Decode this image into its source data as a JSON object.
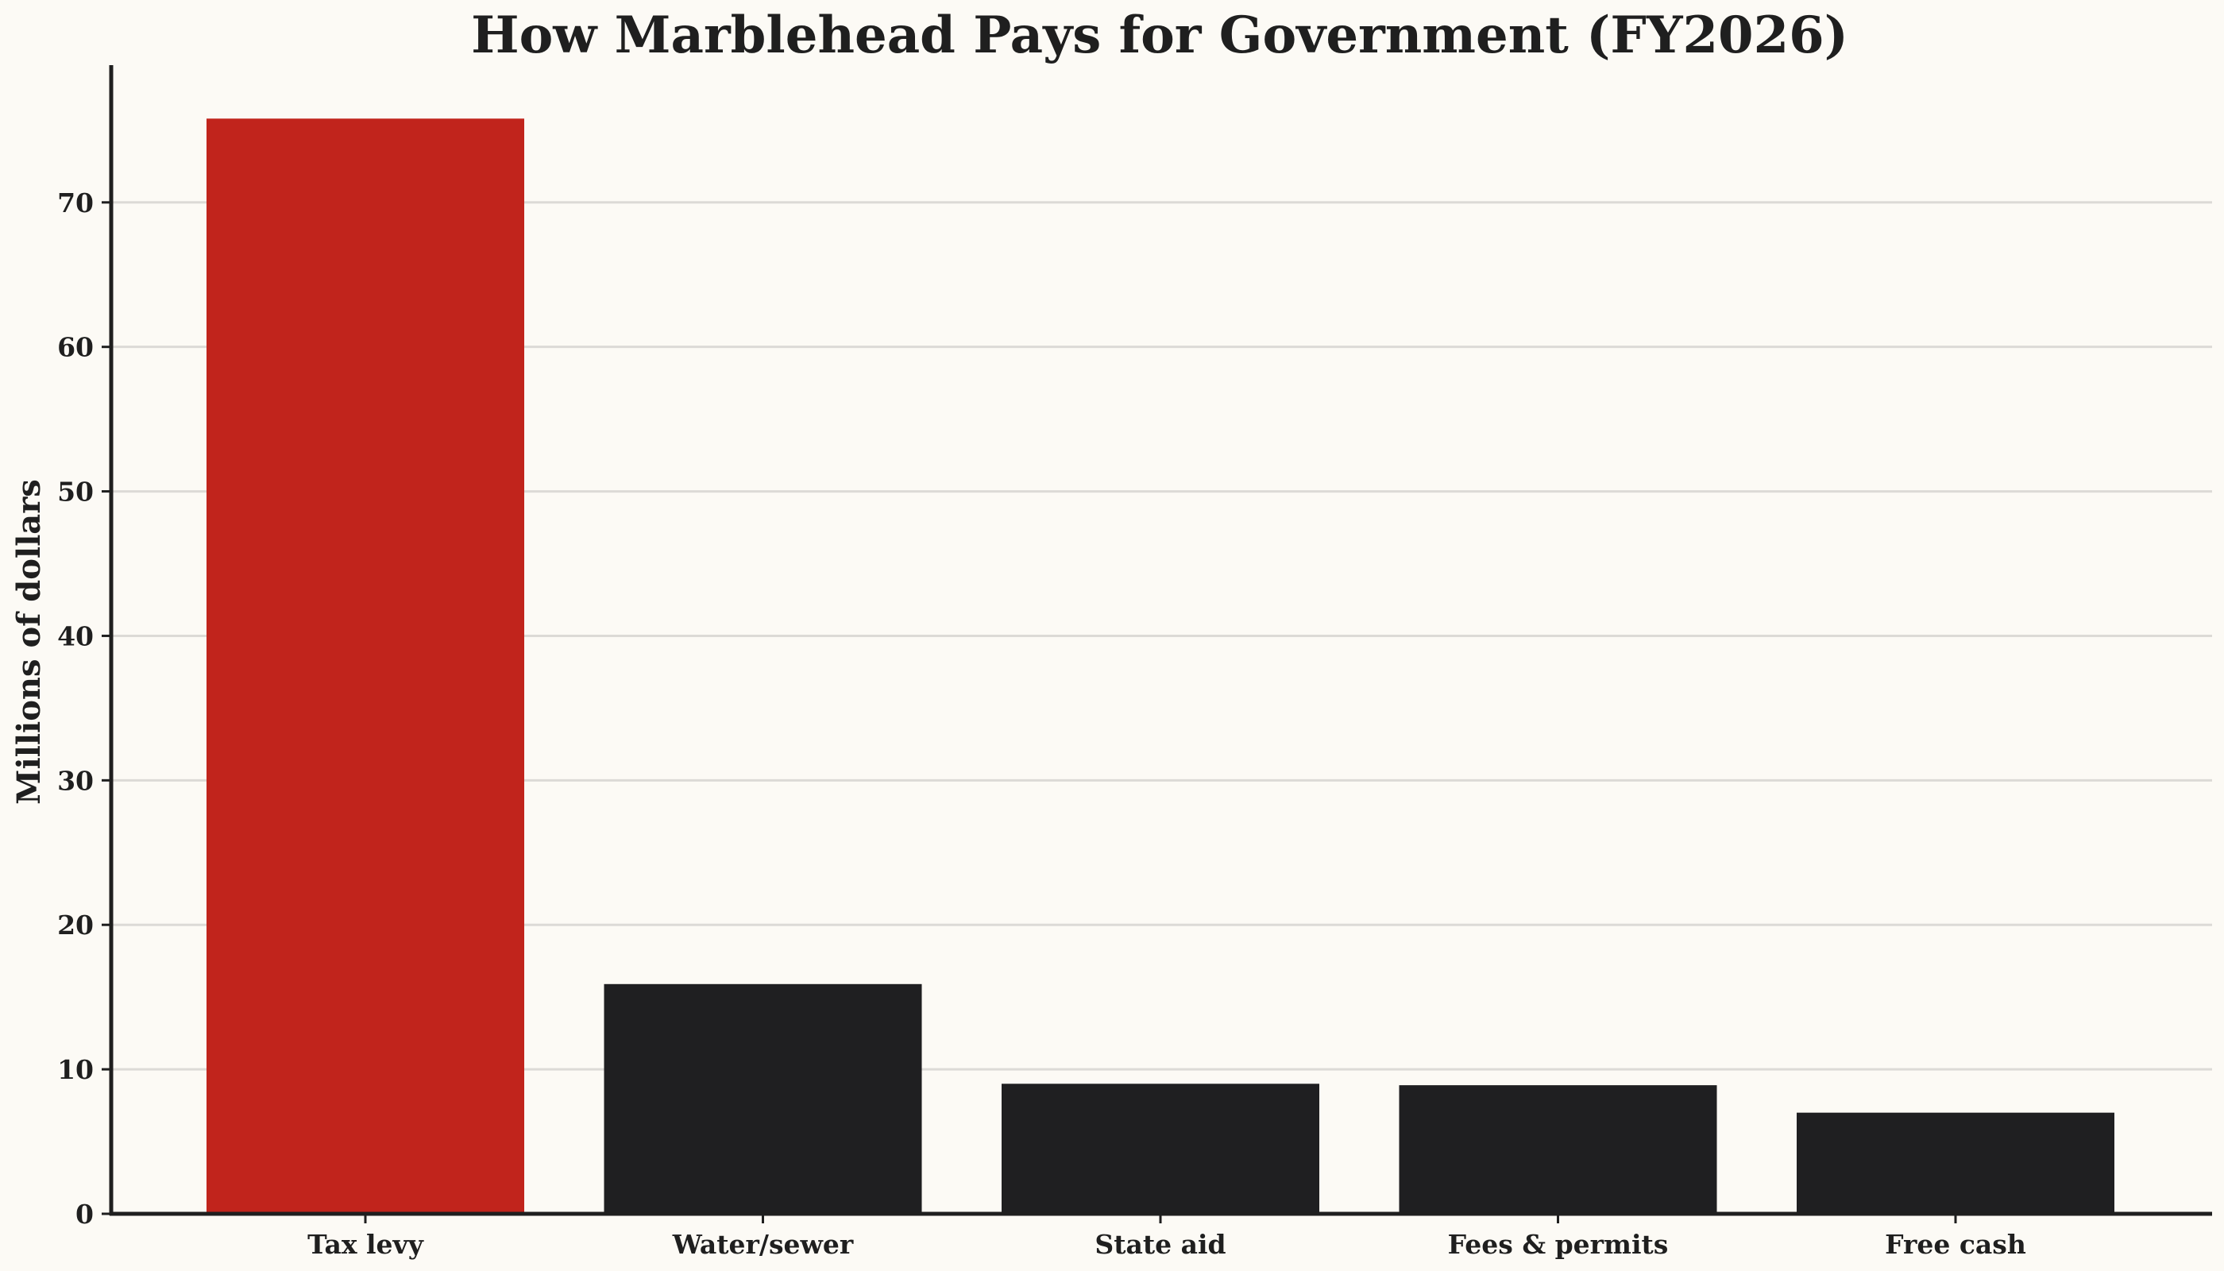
{
  "chart_data": {
    "type": "bar",
    "title": "How Marblehead Pays for Government (FY2026)",
    "xlabel": "",
    "ylabel": "Millions of dollars",
    "categories": [
      "Tax levy",
      "Water/sewer",
      "State aid",
      "Fees & permits",
      "Free cash"
    ],
    "values": [
      75.8,
      15.9,
      9.0,
      8.9,
      7.0
    ],
    "colors": [
      "#c1241c",
      "#1f1f21",
      "#1f1f21",
      "#1f1f21",
      "#1f1f21"
    ],
    "ylim": [
      0,
      79.5
    ],
    "yticks": [
      0,
      10,
      20,
      30,
      40,
      50,
      60,
      70
    ],
    "grid": true,
    "legend": "none"
  }
}
